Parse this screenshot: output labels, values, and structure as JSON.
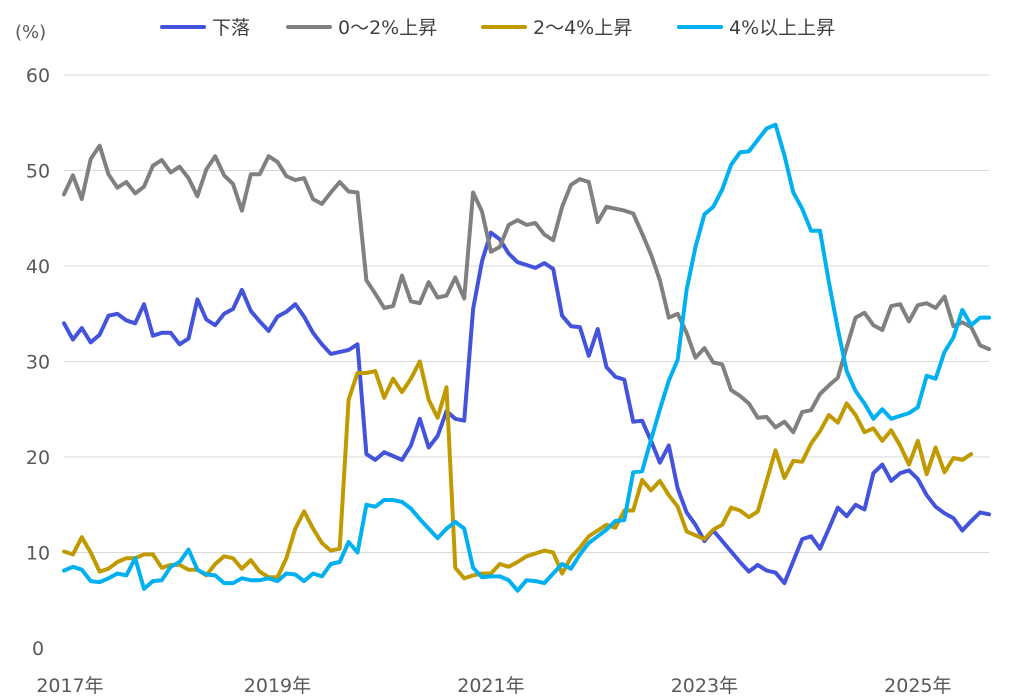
{
  "chart_data": {
    "type": "line",
    "unit_label": "(%)",
    "ylim": [
      0,
      60
    ],
    "yticks": [
      0,
      10,
      20,
      30,
      40,
      50,
      60
    ],
    "x_start": "2017-01",
    "x_end": "2025-09",
    "xticks": [
      {
        "label": "2017年",
        "x": "2017-01"
      },
      {
        "label": "2019年",
        "x": "2019-01"
      },
      {
        "label": "2021年",
        "x": "2021-01"
      },
      {
        "label": "2023年",
        "x": "2023-01"
      },
      {
        "label": "2025年",
        "x": "2025-01"
      }
    ],
    "grid": true,
    "legend_position": "top",
    "series": [
      {
        "name": "下落",
        "color": "#4353dc",
        "start": "2017-01",
        "values": [
          34,
          32.3,
          33.5,
          32,
          32.8,
          34.8,
          35,
          34.3,
          34,
          36,
          32.7,
          33,
          33,
          31.8,
          32.4,
          36.5,
          34.4,
          33.8,
          35,
          35.5,
          37.5,
          35.3,
          34.2,
          33.2,
          34.7,
          35.2,
          36,
          34.7,
          33,
          31.8,
          30.8,
          31,
          31.2,
          31.8,
          20.3,
          19.7,
          20.5,
          20.1,
          19.7,
          21.2,
          24,
          21,
          22.2,
          24.8,
          24,
          23.8,
          35.5,
          40.5,
          43.5,
          42.8,
          41.3,
          40.4,
          40.1,
          39.8,
          40.3,
          39.7,
          34.8,
          33.7,
          33.6,
          30.6,
          33.4,
          29.4,
          28.4,
          28.1,
          23.7,
          23.8,
          21.7,
          19.4,
          21.2,
          16.7,
          14.2,
          12.9,
          11.2,
          12.3,
          11.2,
          10.1,
          9,
          8,
          8.7,
          8.1,
          7.9,
          6.8,
          9.1,
          11.4,
          11.7,
          10.4,
          12.5,
          14.7,
          13.8,
          15,
          14.5,
          18.3,
          19.2,
          17.5,
          18.3,
          18.6,
          17.7,
          16,
          14.8,
          14.1,
          13.6,
          12.3,
          13.3,
          14.2,
          14
        ]
      },
      {
        "name": "0～2%上昇",
        "color": "#808080",
        "start": "2017-01",
        "values": [
          47.5,
          49.5,
          47,
          51.2,
          52.6,
          49.6,
          48.2,
          48.8,
          47.6,
          48.3,
          50.5,
          51.1,
          49.8,
          50.4,
          49.2,
          47.3,
          50.1,
          51.5,
          49.5,
          48.6,
          45.8,
          49.6,
          49.6,
          51.5,
          50.9,
          49.4,
          49,
          49.2,
          47,
          46.5,
          47.7,
          48.8,
          47.8,
          47.7,
          38.5,
          37.1,
          35.6,
          35.8,
          39,
          36.3,
          36.1,
          38.3,
          36.7,
          36.9,
          38.8,
          36.6,
          47.7,
          45.7,
          41.5,
          42,
          44.3,
          44.8,
          44.3,
          44.5,
          43.3,
          42.7,
          46.2,
          48.5,
          49.1,
          48.8,
          44.6,
          46.2,
          46,
          45.8,
          45.5,
          43.4,
          41.2,
          38.5,
          34.6,
          35,
          33,
          30.4,
          31.4,
          29.9,
          29.7,
          27,
          26.4,
          25.6,
          24.1,
          24.2,
          23.1,
          23.7,
          22.6,
          24.7,
          24.9,
          26.6,
          27.5,
          28.3,
          31.5,
          34.6,
          35.1,
          33.8,
          33.3,
          35.8,
          36,
          34.2,
          35.9,
          36.1,
          35.6,
          36.8,
          33.7,
          34.1,
          33.6,
          31.7,
          31.3
        ]
      },
      {
        "name": "2～4%上昇",
        "color": "#c19a00",
        "start": "2017-01",
        "values": [
          10.1,
          9.8,
          11.6,
          10,
          8,
          8.3,
          9,
          9.4,
          9.4,
          9.8,
          9.8,
          8.4,
          8.7,
          8.7,
          8.2,
          8.2,
          7.6,
          8.8,
          9.6,
          9.4,
          8.3,
          9.2,
          8,
          7.4,
          7.4,
          9.4,
          12.5,
          14.3,
          12.5,
          11,
          10.2,
          10.4,
          26,
          28.8,
          28.8,
          29,
          26.2,
          28.2,
          26.8,
          28.2,
          30,
          26,
          24.1,
          27.3,
          8.4,
          7.3,
          7.6,
          7.8,
          7.8,
          8.8,
          8.5,
          9,
          9.6,
          9.9,
          10.2,
          10,
          7.8,
          9.5,
          10.5,
          11.7,
          12.3,
          12.9,
          12.6,
          14.4,
          14.4,
          17.6,
          16.5,
          17.5,
          16,
          14.8,
          12.2,
          11.8,
          11.4,
          12.4,
          12.9,
          14.7,
          14.4,
          13.7,
          14.3,
          17.5,
          20.7,
          17.8,
          19.6,
          19.5,
          21.4,
          22.7,
          24.4,
          23.6,
          25.6,
          24.4,
          22.6,
          23,
          21.7,
          22.8,
          21.2,
          19.2,
          21.7,
          18.2,
          21,
          18.4,
          19.9,
          19.7,
          20.3
        ]
      },
      {
        "name": "4%以上上昇",
        "color": "#00b0f0",
        "start": "2017-01",
        "values": [
          8.1,
          8.5,
          8.2,
          7,
          6.9,
          7.3,
          7.8,
          7.6,
          9.4,
          6.2,
          7,
          7.1,
          8.5,
          9,
          10.3,
          8.2,
          7.7,
          7.6,
          6.8,
          6.8,
          7.3,
          7.1,
          7.1,
          7.3,
          7,
          7.8,
          7.7,
          7,
          7.8,
          7.5,
          8.8,
          9,
          11.1,
          10,
          15,
          14.8,
          15.5,
          15.5,
          15.3,
          14.6,
          13.5,
          12.5,
          11.5,
          12.5,
          13.2,
          12.5,
          8.4,
          7.4,
          7.5,
          7.5,
          7.1,
          6,
          7.1,
          7,
          6.8,
          7.8,
          8.8,
          8.3,
          9.8,
          11,
          11.7,
          12.4,
          13.3,
          13.4,
          18.4,
          18.5,
          21.8,
          25,
          28,
          30.2,
          37.5,
          42,
          45.4,
          46.2,
          48,
          50.6,
          51.9,
          52,
          53.2,
          54.4,
          54.8,
          51.6,
          47.7,
          46,
          43.7,
          43.7,
          38.3,
          33.4,
          29,
          26.9,
          25.6,
          24,
          25,
          24,
          24.3,
          24.6,
          25.2,
          28.5,
          28.2,
          31,
          32.5,
          35.4,
          33.8,
          34.6,
          34.6
        ]
      }
    ]
  }
}
